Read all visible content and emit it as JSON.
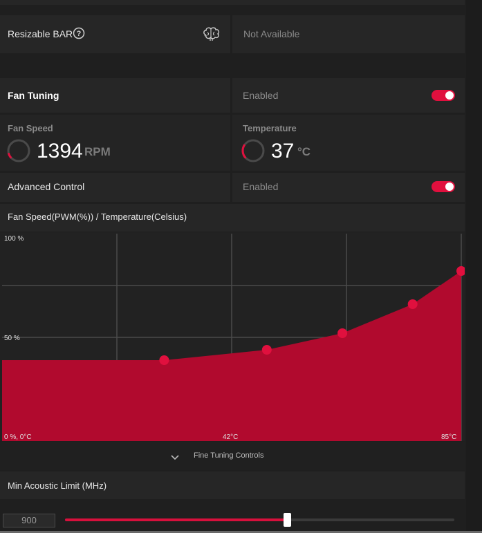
{
  "resizable_bar": {
    "label": "Resizable BAR",
    "help_icon": "question-circle-icon",
    "brain_icon": "brain-icon",
    "value": "Not Available"
  },
  "fan_tuning": {
    "label": "Fan Tuning",
    "status": "Enabled",
    "enabled": true
  },
  "fan_speed": {
    "label": "Fan Speed",
    "value": "1394",
    "unit": "RPM",
    "gauge_fraction": 0.12
  },
  "temperature": {
    "label": "Temperature",
    "value": "37",
    "unit": "°C",
    "gauge_fraction": 0.3
  },
  "advanced_control": {
    "label": "Advanced Control",
    "status": "Enabled",
    "enabled": true
  },
  "chart_title": "Fan Speed(PWM(%)) / Temperature(Celsius)",
  "chart_data": {
    "type": "area",
    "title": "Fan Speed(PWM(%)) / Temperature(Celsius)",
    "y_tick_labels": [
      "100 %",
      "50 %",
      "0 %, 0°C"
    ],
    "x_tick_labels": [
      "42°C",
      "85°C"
    ],
    "xlim": [
      0,
      85
    ],
    "ylim": [
      0,
      100
    ],
    "points": [
      {
        "x": 0,
        "y": 39
      },
      {
        "x": 30,
        "y": 39
      },
      {
        "x": 49,
        "y": 44
      },
      {
        "x": 63,
        "y": 52
      },
      {
        "x": 76,
        "y": 66
      },
      {
        "x": 85,
        "y": 82
      }
    ],
    "handles": [
      1,
      2,
      3,
      4,
      5
    ],
    "colors": {
      "fill": "#b10a2e",
      "handle": "#e0103e",
      "grid": "#4a4a4a"
    }
  },
  "fine_tuning": {
    "label": "Fine Tuning Controls",
    "icon": "chevron-down-icon"
  },
  "min_acoustic": {
    "label": "Min Acoustic Limit (MHz)",
    "value": "900",
    "slider_fraction": 0.57
  }
}
